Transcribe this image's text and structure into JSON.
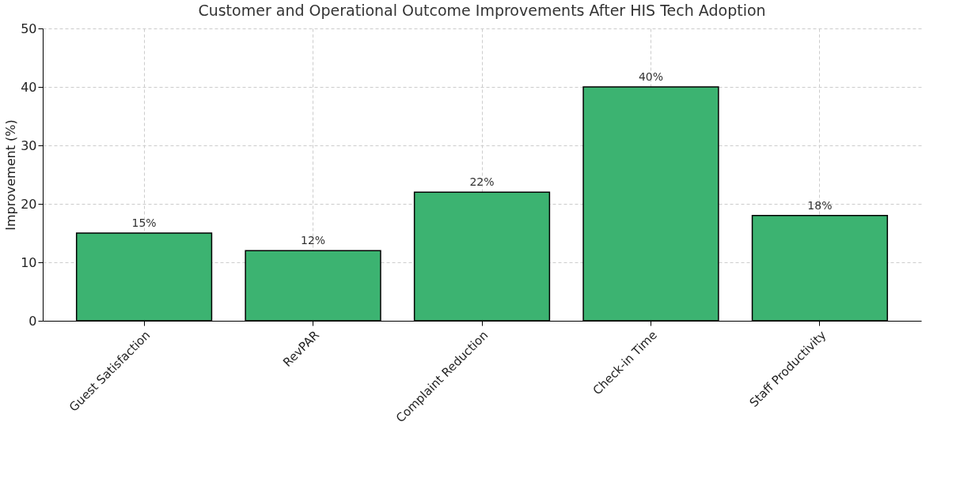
{
  "chart_data": {
    "type": "bar",
    "title": "Customer and Operational Outcome Improvements After HIS Tech Adoption",
    "ylabel": "Improvement (%)",
    "categories": [
      "Guest Satisfaction",
      "RevPAR",
      "Complaint Reduction",
      "Check-in Time",
      "Staff Productivity"
    ],
    "values": [
      15,
      12,
      22,
      40,
      18
    ],
    "value_labels": [
      "15%",
      "12%",
      "22%",
      "40%",
      "18%"
    ],
    "color": "#3cb371",
    "ylim": [
      0,
      50
    ],
    "yticks": [
      0,
      10,
      20,
      30,
      40,
      50
    ],
    "grid": true
  }
}
